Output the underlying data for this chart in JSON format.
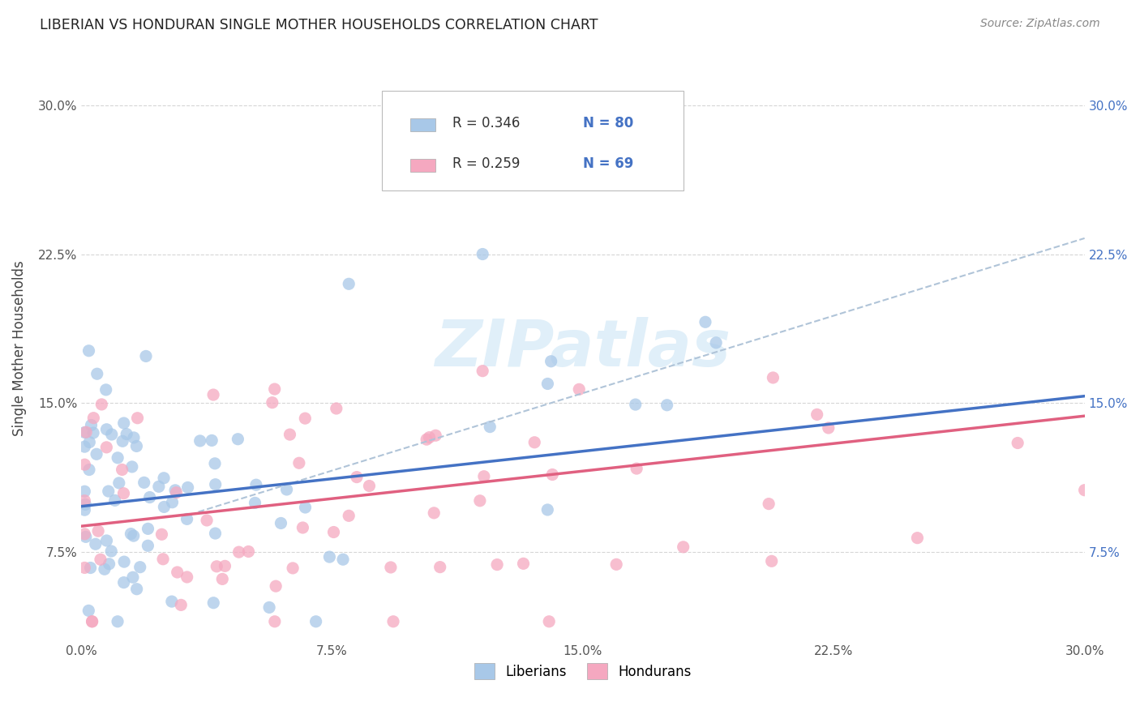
{
  "title": "LIBERIAN VS HONDURAN SINGLE MOTHER HOUSEHOLDS CORRELATION CHART",
  "source": "Source: ZipAtlas.com",
  "ylabel_label": "Single Mother Households",
  "watermark": "ZIPatlas",
  "legend_liberian_R": "R = 0.346",
  "legend_liberian_N": "N = 80",
  "legend_honduran_R": "R = 0.259",
  "legend_honduran_N": "N = 69",
  "liberian_color": "#a8c8e8",
  "honduran_color": "#f5a8c0",
  "liberian_line_color": "#4472c4",
  "honduran_line_color": "#e06080",
  "trendline_dashed_color": "#b0c4d8",
  "axis_tick_color_left": "#555555",
  "axis_tick_color_right": "#4472c4",
  "background_color": "#ffffff",
  "xmin": 0.0,
  "xmax": 0.3,
  "ymin": 0.03,
  "ymax": 0.325,
  "xtick_vals": [
    0.0,
    0.075,
    0.15,
    0.225,
    0.3
  ],
  "xtick_labels": [
    "0.0%",
    "7.5%",
    "15.0%",
    "22.5%",
    "30.0%"
  ],
  "ytick_vals": [
    0.075,
    0.15,
    0.225,
    0.3
  ],
  "ytick_labels": [
    "7.5%",
    "15.0%",
    "22.5%",
    "30.0%"
  ]
}
